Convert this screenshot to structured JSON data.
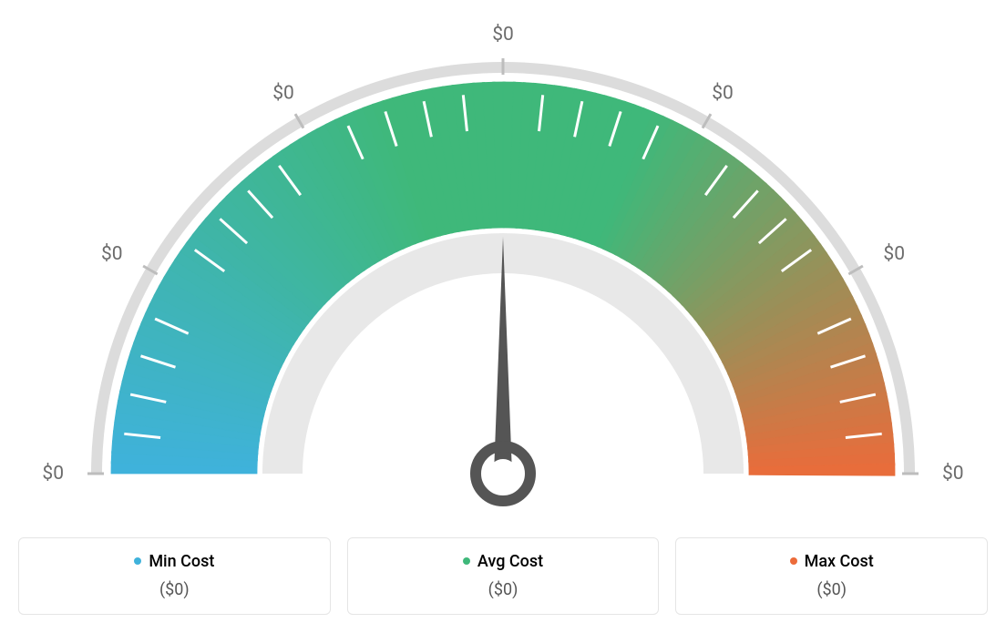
{
  "gauge": {
    "type": "gauge",
    "angle_start_deg": 180,
    "angle_end_deg": 0,
    "needle_angle_deg": 90,
    "tick_labels": [
      "$0",
      "$0",
      "$0",
      "$0",
      "$0",
      "$0",
      "$0"
    ],
    "outer_radius": 430,
    "inner_radius": 270,
    "ring_outer_radius": 452,
    "ring_inner_radius": 440,
    "colors": {
      "min": "#3fb2db",
      "avg": "#3fb87a",
      "max": "#ec6b3a",
      "ring": "#dcdcdc",
      "inner_donut": "#e8e8e8",
      "needle": "#555555",
      "tick_minor": "#ffffff",
      "tick_label": "#6b6b6b",
      "background": "#ffffff"
    },
    "tick_label_fontsize": 21,
    "minor_ticks_per_segment": 4,
    "segments": 6,
    "needle_length": 260,
    "needle_hub_outer_r": 30,
    "needle_hub_inner_r": 16
  },
  "legend": {
    "items": [
      {
        "label": "Min Cost",
        "value": "($0)",
        "color": "#3fb2db"
      },
      {
        "label": "Avg Cost",
        "value": "($0)",
        "color": "#3fb87a"
      },
      {
        "label": "Max Cost",
        "value": "($0)",
        "color": "#ec6b3a"
      }
    ],
    "label_fontsize": 18,
    "value_fontsize": 18,
    "card_border_color": "#e5e5e5",
    "card_border_radius": 6
  }
}
